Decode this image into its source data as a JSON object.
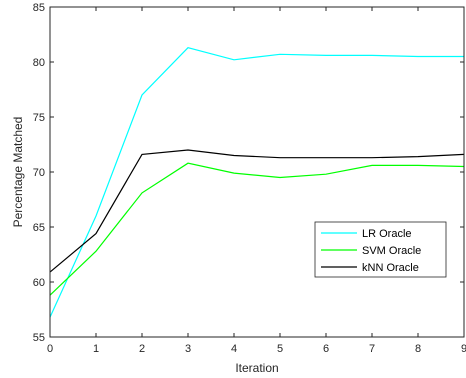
{
  "chart_data": {
    "type": "line",
    "title": "",
    "xlabel": "Iteration",
    "ylabel": "Percentage Matched",
    "xlim": [
      0,
      9
    ],
    "ylim": [
      55,
      85
    ],
    "xticks": [
      0,
      1,
      2,
      3,
      4,
      5,
      6,
      7,
      8,
      9
    ],
    "yticks": [
      55,
      60,
      65,
      70,
      75,
      80,
      85
    ],
    "grid": false,
    "legend_position": "right",
    "x": [
      0,
      1,
      2,
      3,
      4,
      5,
      6,
      7,
      8,
      9
    ],
    "series": [
      {
        "name": "LR Oracle",
        "color": "#00ffff",
        "values": [
          56.8,
          66.0,
          77.0,
          81.3,
          80.2,
          80.7,
          80.6,
          80.6,
          80.5,
          80.5
        ]
      },
      {
        "name": "SVM Oracle",
        "color": "#00ff00",
        "values": [
          58.8,
          62.8,
          68.1,
          70.8,
          69.9,
          69.5,
          69.8,
          70.6,
          70.6,
          70.5
        ]
      },
      {
        "name": "kNN Oracle",
        "color": "#000000",
        "values": [
          60.9,
          64.4,
          71.6,
          72.0,
          71.5,
          71.3,
          71.3,
          71.3,
          71.4,
          71.6
        ]
      }
    ]
  }
}
